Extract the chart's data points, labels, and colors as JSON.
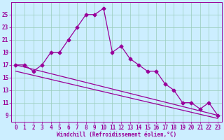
{
  "x": [
    0,
    1,
    2,
    3,
    4,
    5,
    6,
    7,
    8,
    9,
    10,
    11,
    12,
    13,
    14,
    15,
    16,
    17,
    18,
    19,
    20,
    21,
    22,
    23
  ],
  "y_main": [
    17,
    17,
    16,
    17,
    19,
    19,
    21,
    23,
    25,
    25,
    26,
    19,
    20,
    18,
    17,
    16,
    16,
    14,
    13,
    11,
    11,
    10,
    11,
    9
  ],
  "y_reg1_start": 17.0,
  "y_reg1_end": 9.0,
  "y_reg2_start": 16.0,
  "y_reg2_end": 8.5,
  "bg_color": "#cceeff",
  "line_color": "#990099",
  "grid_color": "#99ccbb",
  "xlabel": "Windchill (Refroidissement éolien,°C)",
  "xlim": [
    -0.5,
    23.5
  ],
  "ylim": [
    8,
    27
  ],
  "yticks": [
    9,
    11,
    13,
    15,
    17,
    19,
    21,
    23,
    25
  ],
  "xticks": [
    0,
    1,
    2,
    3,
    4,
    5,
    6,
    7,
    8,
    9,
    10,
    11,
    12,
    13,
    14,
    15,
    16,
    17,
    18,
    19,
    20,
    21,
    22,
    23
  ],
  "marker": "D",
  "markersize": 2.5,
  "linewidth": 0.9
}
